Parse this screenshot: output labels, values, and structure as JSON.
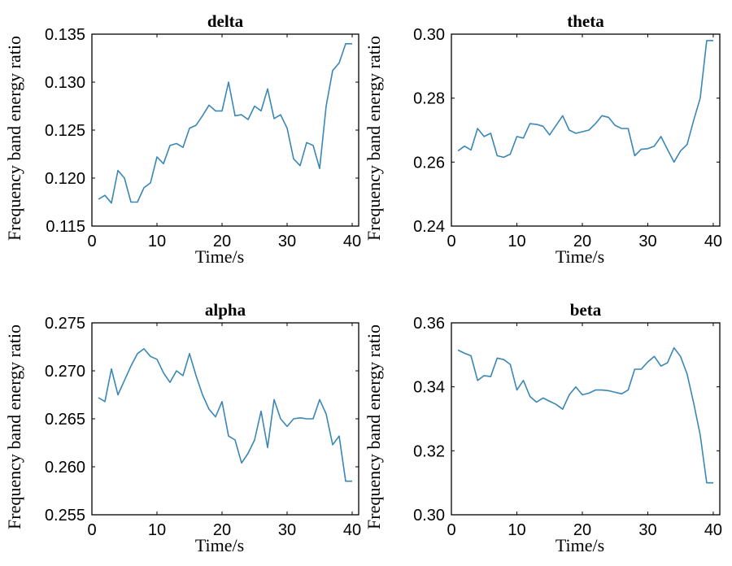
{
  "chart_data": [
    {
      "type": "line",
      "title": "delta",
      "xlabel": "Time/s",
      "ylabel": "Frequency band energy ratio",
      "xlim": [
        0,
        41
      ],
      "ylim": [
        0.115,
        0.135
      ],
      "xticks": [
        0,
        10,
        20,
        30,
        40
      ],
      "xtick_labels": [
        "0",
        "10",
        "20",
        "30",
        "40"
      ],
      "yticks": [
        0.115,
        0.12,
        0.125,
        0.13,
        0.135
      ],
      "ytick_labels": [
        "0.115",
        "0.120",
        "0.125",
        "0.130",
        "0.135"
      ],
      "color": "#3a87b5",
      "grid": false,
      "x": [
        1,
        2,
        3,
        4,
        5,
        6,
        7,
        8,
        9,
        10,
        11,
        12,
        13,
        14,
        15,
        16,
        17,
        18,
        19,
        20,
        21,
        22,
        23,
        24,
        25,
        26,
        27,
        28,
        29,
        30,
        31,
        32,
        33,
        34,
        35,
        36,
        37,
        38,
        39,
        40
      ],
      "y": [
        0.1178,
        0.1182,
        0.1174,
        0.1208,
        0.12,
        0.1175,
        0.1175,
        0.119,
        0.1195,
        0.1222,
        0.1215,
        0.1234,
        0.1236,
        0.1232,
        0.1252,
        0.1255,
        0.1265,
        0.1276,
        0.127,
        0.127,
        0.13,
        0.1265,
        0.1266,
        0.1261,
        0.1275,
        0.127,
        0.1293,
        0.1262,
        0.1266,
        0.1252,
        0.122,
        0.1213,
        0.1237,
        0.1234,
        0.121,
        0.1275,
        0.1312,
        0.132,
        0.134,
        0.134
      ]
    },
    {
      "type": "line",
      "title": "theta",
      "xlabel": "Time/s",
      "ylabel": "Frequency band energy ratio",
      "xlim": [
        0,
        41
      ],
      "ylim": [
        0.24,
        0.3
      ],
      "xticks": [
        0,
        10,
        20,
        30,
        40
      ],
      "xtick_labels": [
        "0",
        "10",
        "20",
        "30",
        "40"
      ],
      "yticks": [
        0.24,
        0.26,
        0.28,
        0.3
      ],
      "ytick_labels": [
        "0.24",
        "0.26",
        "0.28",
        "0.30"
      ],
      "color": "#3a87b5",
      "grid": false,
      "x": [
        1,
        2,
        3,
        4,
        5,
        6,
        7,
        8,
        9,
        10,
        11,
        12,
        13,
        14,
        15,
        16,
        17,
        18,
        19,
        20,
        21,
        22,
        23,
        24,
        25,
        26,
        27,
        28,
        29,
        30,
        31,
        32,
        33,
        34,
        35,
        36,
        37,
        38,
        39,
        40
      ],
      "y": [
        0.2635,
        0.265,
        0.2638,
        0.2705,
        0.268,
        0.269,
        0.262,
        0.2615,
        0.2625,
        0.268,
        0.2675,
        0.272,
        0.2718,
        0.2712,
        0.2685,
        0.2715,
        0.2745,
        0.27,
        0.269,
        0.2695,
        0.27,
        0.272,
        0.2745,
        0.274,
        0.2715,
        0.2705,
        0.2705,
        0.262,
        0.264,
        0.2642,
        0.265,
        0.268,
        0.264,
        0.26,
        0.2635,
        0.2655,
        0.273,
        0.28,
        0.298,
        0.298
      ]
    },
    {
      "type": "line",
      "title": "alpha",
      "xlabel": "Time/s",
      "ylabel": "Frequency band energy ratio",
      "xlim": [
        0,
        41
      ],
      "ylim": [
        0.255,
        0.275
      ],
      "xticks": [
        0,
        10,
        20,
        30,
        40
      ],
      "xtick_labels": [
        "0",
        "10",
        "20",
        "30",
        "40"
      ],
      "yticks": [
        0.255,
        0.26,
        0.265,
        0.27,
        0.275
      ],
      "ytick_labels": [
        "0.255",
        "0.260",
        "0.265",
        "0.270",
        "0.275"
      ],
      "color": "#3a87b5",
      "grid": false,
      "x": [
        1,
        2,
        3,
        4,
        5,
        6,
        7,
        8,
        9,
        10,
        11,
        12,
        13,
        14,
        15,
        16,
        17,
        18,
        19,
        20,
        21,
        22,
        23,
        24,
        25,
        26,
        27,
        28,
        29,
        30,
        31,
        32,
        33,
        34,
        35,
        36,
        37,
        38,
        39,
        40
      ],
      "y": [
        0.2672,
        0.2668,
        0.2702,
        0.2675,
        0.269,
        0.2705,
        0.2718,
        0.2723,
        0.2715,
        0.2712,
        0.2698,
        0.2688,
        0.27,
        0.2695,
        0.2718,
        0.2695,
        0.2675,
        0.266,
        0.2652,
        0.2668,
        0.2632,
        0.2628,
        0.2604,
        0.2614,
        0.2628,
        0.2658,
        0.262,
        0.267,
        0.265,
        0.2642,
        0.265,
        0.2651,
        0.265,
        0.265,
        0.267,
        0.2655,
        0.2623,
        0.2632,
        0.2585,
        0.2585
      ]
    },
    {
      "type": "line",
      "title": "beta",
      "xlabel": "Time/s",
      "ylabel": "Frequency band energy ratio",
      "xlim": [
        0,
        41
      ],
      "ylim": [
        0.3,
        0.36
      ],
      "xticks": [
        0,
        10,
        20,
        30,
        40
      ],
      "xtick_labels": [
        "0",
        "10",
        "20",
        "30",
        "40"
      ],
      "yticks": [
        0.3,
        0.32,
        0.34,
        0.36
      ],
      "ytick_labels": [
        "0.30",
        "0.32",
        "0.34",
        "0.36"
      ],
      "color": "#3a87b5",
      "grid": false,
      "x": [
        1,
        2,
        3,
        4,
        5,
        6,
        7,
        8,
        9,
        10,
        11,
        12,
        13,
        14,
        15,
        16,
        17,
        18,
        19,
        20,
        21,
        22,
        23,
        24,
        25,
        26,
        27,
        28,
        29,
        30,
        31,
        32,
        33,
        34,
        35,
        36,
        37,
        38,
        39,
        40
      ],
      "y": [
        0.3515,
        0.3505,
        0.3497,
        0.342,
        0.3435,
        0.3432,
        0.349,
        0.3485,
        0.347,
        0.339,
        0.342,
        0.337,
        0.3352,
        0.3365,
        0.3355,
        0.3345,
        0.333,
        0.3375,
        0.34,
        0.3375,
        0.338,
        0.339,
        0.339,
        0.3388,
        0.3383,
        0.3378,
        0.339,
        0.3455,
        0.3455,
        0.3478,
        0.3495,
        0.3465,
        0.3475,
        0.3522,
        0.3495,
        0.344,
        0.335,
        0.325,
        0.31,
        0.31
      ]
    }
  ]
}
